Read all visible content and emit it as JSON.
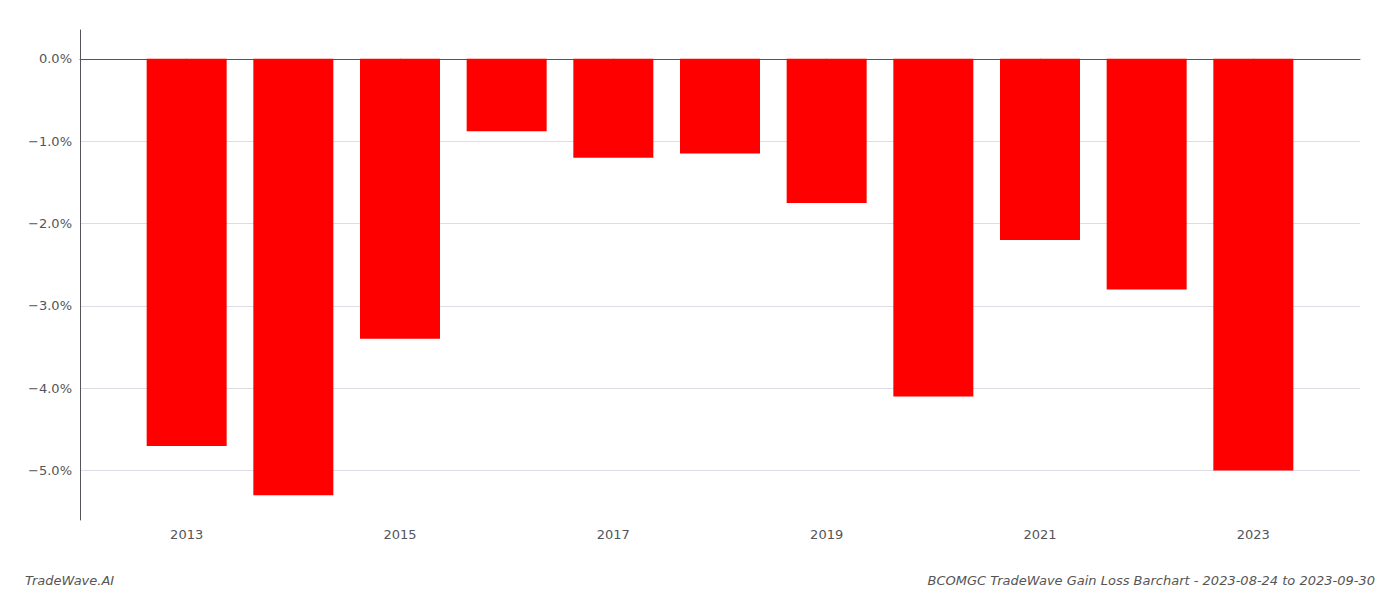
{
  "chart_data": {
    "type": "bar",
    "title": "BCOMGC TradeWave Gain Loss Barchart - 2023-08-24 to 2023-09-30",
    "annotations": [
      "TradeWave.AI"
    ],
    "x": [
      2013,
      2014,
      2015,
      2016,
      2017,
      2018,
      2019,
      2020,
      2021,
      2022,
      2023
    ],
    "values": [
      -4.7,
      -5.3,
      -3.4,
      -0.88,
      -1.2,
      -1.15,
      -1.75,
      -4.1,
      -2.2,
      -2.8,
      -5.0
    ],
    "color": "#ff0000",
    "xlim": [
      2012,
      2024
    ],
    "xticks": [
      2013,
      2015,
      2017,
      2019,
      2021,
      2023
    ],
    "ylim": [
      -5.6,
      0.35
    ],
    "yticks": [
      {
        "value": 0.0,
        "label": "0.0%"
      },
      {
        "value": -1.0,
        "label": "−1.0%"
      },
      {
        "value": -2.0,
        "label": "−2.0%"
      },
      {
        "value": -3.0,
        "label": "−3.0%"
      },
      {
        "value": -4.0,
        "label": "−4.0%"
      },
      {
        "value": -5.0,
        "label": "−5.0%"
      }
    ],
    "grid": true
  }
}
